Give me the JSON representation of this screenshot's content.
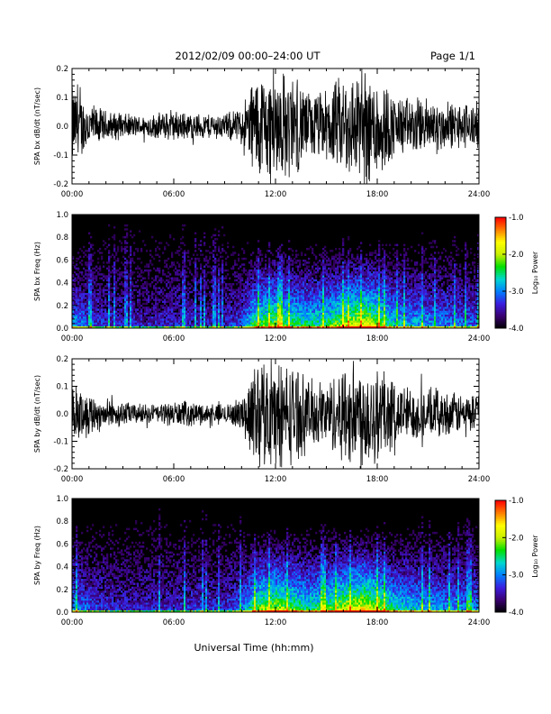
{
  "header": {
    "title": "2012/02/09   00:00–24:00 UT",
    "page": "Page 1/1"
  },
  "xaxis_label": "Universal Time (hh:mm)",
  "xticks": [
    "00:00",
    "06:00",
    "12:00",
    "18:00",
    "24:00"
  ],
  "colorbar": {
    "label": "Log₁₀ Power",
    "ticks": [
      "-1.0",
      "-2.0",
      "-3.0",
      "-4.0"
    ],
    "range": [
      -4.0,
      -1.0
    ],
    "colors": [
      "#000000",
      "#3a0070",
      "#3b1ee0",
      "#0080ff",
      "#00d8d0",
      "#00e000",
      "#c8f000",
      "#ffff00",
      "#ff8000",
      "#ff0000"
    ]
  },
  "chart_data": [
    {
      "type": "line",
      "ylabel": "SPA bx dB/dt (nT/sec)",
      "ylim": [
        -0.2,
        0.2
      ],
      "yticks": [
        "0.2",
        "0.1",
        "0.0",
        "-0.1",
        "-0.2"
      ],
      "x_hours": [
        0,
        1,
        2,
        3,
        4,
        5,
        6,
        7,
        8,
        9,
        10,
        10.7,
        11,
        12,
        13,
        14,
        15,
        16,
        17,
        18,
        19,
        20,
        21,
        22,
        23,
        24
      ],
      "envelope": [
        0.16,
        0.09,
        0.06,
        0.05,
        0.04,
        0.05,
        0.06,
        0.05,
        0.05,
        0.05,
        0.07,
        0.2,
        0.21,
        0.22,
        0.2,
        0.13,
        0.14,
        0.2,
        0.22,
        0.22,
        0.12,
        0.11,
        0.11,
        0.09,
        0.09,
        0.09
      ]
    },
    {
      "type": "heatmap",
      "ylabel": "SPA bx Freq (Hz)",
      "ylim": [
        0.0,
        1.0
      ],
      "yticks": [
        "1.0",
        "0.8",
        "0.6",
        "0.4",
        "0.2",
        "0.0"
      ],
      "x_hours": [
        0,
        1,
        2,
        3,
        4,
        5,
        6,
        7,
        8,
        9,
        10,
        10.7,
        11,
        12,
        13,
        14,
        15,
        16,
        17,
        18,
        19,
        20,
        21,
        22,
        23,
        24
      ],
      "activity": [
        0.45,
        0.3,
        0.25,
        0.22,
        0.2,
        0.22,
        0.25,
        0.22,
        0.22,
        0.22,
        0.3,
        0.6,
        0.65,
        0.7,
        0.62,
        0.55,
        0.6,
        0.75,
        0.85,
        0.75,
        0.5,
        0.45,
        0.42,
        0.38,
        0.35,
        0.35
      ]
    },
    {
      "type": "line",
      "ylabel": "SPA by dB/dt (nT/sec)",
      "ylim": [
        -0.2,
        0.2
      ],
      "yticks": [
        "0.2",
        "0.1",
        "0.0",
        "-0.1",
        "-0.2"
      ],
      "x_hours": [
        0,
        1,
        2,
        3,
        4,
        5,
        6,
        7,
        8,
        9,
        10,
        10.7,
        11,
        12,
        13,
        14,
        15,
        16,
        17,
        18,
        19,
        20,
        21,
        22,
        23,
        24
      ],
      "envelope": [
        0.12,
        0.09,
        0.06,
        0.05,
        0.04,
        0.04,
        0.05,
        0.05,
        0.04,
        0.04,
        0.06,
        0.2,
        0.22,
        0.22,
        0.2,
        0.14,
        0.13,
        0.2,
        0.22,
        0.22,
        0.13,
        0.11,
        0.1,
        0.09,
        0.08,
        0.08
      ]
    },
    {
      "type": "heatmap",
      "ylabel": "SPA by Freq (Hz)",
      "ylim": [
        0.0,
        1.0
      ],
      "yticks": [
        "1.0",
        "0.8",
        "0.6",
        "0.4",
        "0.2",
        "0.0"
      ],
      "x_hours": [
        0,
        1,
        2,
        3,
        4,
        5,
        6,
        7,
        8,
        9,
        10,
        10.7,
        11,
        12,
        13,
        14,
        15,
        16,
        17,
        18,
        19,
        20,
        21,
        22,
        23,
        24
      ],
      "activity": [
        0.45,
        0.3,
        0.25,
        0.22,
        0.22,
        0.22,
        0.25,
        0.25,
        0.25,
        0.25,
        0.35,
        0.6,
        0.68,
        0.75,
        0.65,
        0.55,
        0.62,
        0.78,
        0.85,
        0.78,
        0.55,
        0.5,
        0.45,
        0.42,
        0.4,
        0.4
      ]
    }
  ]
}
